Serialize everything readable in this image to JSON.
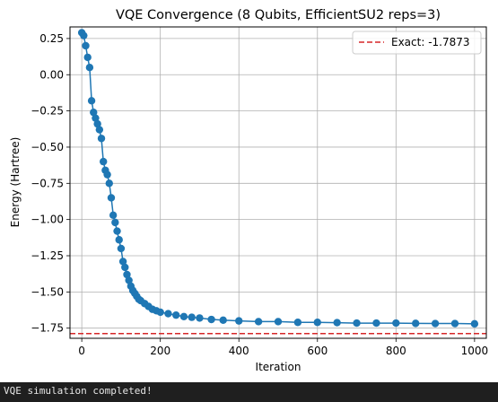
{
  "chart_data": {
    "type": "scatter",
    "title": "VQE Convergence (8 Qubits, EfficientSU2 reps=3)",
    "xlabel": "Iteration",
    "ylabel": "Energy (Hartree)",
    "xlim": [
      -30,
      1030
    ],
    "ylim": [
      -1.82,
      0.33
    ],
    "xticks": [
      0,
      200,
      400,
      600,
      800,
      1000
    ],
    "xtick_labels": [
      "0",
      "200",
      "400",
      "600",
      "800",
      "1000"
    ],
    "yticks": [
      0.25,
      0.0,
      -0.25,
      -0.5,
      -0.75,
      -1.0,
      -1.25,
      -1.5,
      -1.75
    ],
    "ytick_labels": [
      "0.25",
      "0.00",
      "−0.25",
      "−0.50",
      "−0.75",
      "−1.00",
      "−1.25",
      "−1.50",
      "−1.75"
    ],
    "grid": true,
    "legend_position": "top-right",
    "series": [
      {
        "name": "",
        "color": "#1f77b4",
        "marker": "circle",
        "line": true,
        "x": [
          0,
          5,
          10,
          15,
          20,
          25,
          30,
          35,
          40,
          45,
          50,
          55,
          60,
          65,
          70,
          75,
          80,
          85,
          90,
          95,
          100,
          105,
          110,
          115,
          120,
          125,
          130,
          135,
          140,
          145,
          150,
          160,
          170,
          180,
          190,
          200,
          220,
          240,
          260,
          280,
          300,
          330,
          360,
          400,
          450,
          500,
          550,
          600,
          650,
          700,
          750,
          800,
          850,
          900,
          950,
          1000
        ],
        "y": [
          0.29,
          0.27,
          0.2,
          0.12,
          0.05,
          -0.18,
          -0.26,
          -0.3,
          -0.34,
          -0.38,
          -0.44,
          -0.6,
          -0.66,
          -0.69,
          -0.75,
          -0.85,
          -0.97,
          -1.02,
          -1.08,
          -1.14,
          -1.2,
          -1.29,
          -1.33,
          -1.38,
          -1.42,
          -1.46,
          -1.49,
          -1.51,
          -1.53,
          -1.55,
          -1.56,
          -1.58,
          -1.6,
          -1.62,
          -1.63,
          -1.64,
          -1.65,
          -1.66,
          -1.67,
          -1.675,
          -1.68,
          -1.69,
          -1.695,
          -1.7,
          -1.705,
          -1.705,
          -1.71,
          -1.71,
          -1.712,
          -1.715,
          -1.715,
          -1.715,
          -1.717,
          -1.718,
          -1.718,
          -1.72
        ]
      },
      {
        "name": "Exact: -1.7873",
        "color": "#d62728",
        "style": "dashed",
        "hline": -1.7873
      }
    ]
  },
  "output": {
    "message": "VQE simulation completed!"
  }
}
